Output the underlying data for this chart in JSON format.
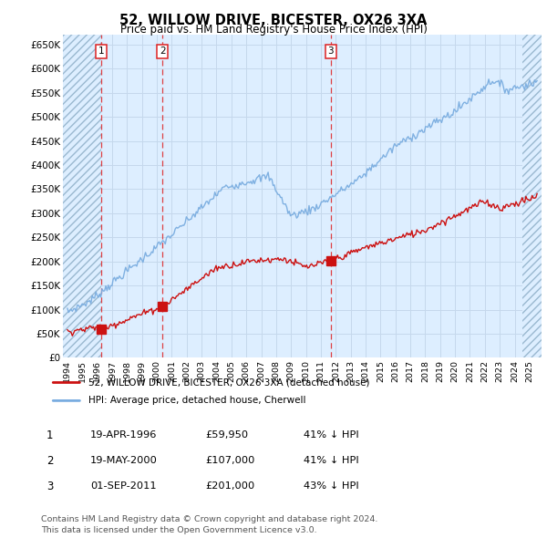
{
  "title": "52, WILLOW DRIVE, BICESTER, OX26 3XA",
  "subtitle": "Price paid vs. HM Land Registry's House Price Index (HPI)",
  "ylabel_ticks": [
    "£0",
    "£50K",
    "£100K",
    "£150K",
    "£200K",
    "£250K",
    "£300K",
    "£350K",
    "£400K",
    "£450K",
    "£500K",
    "£550K",
    "£600K",
    "£650K"
  ],
  "ylim": [
    0,
    670000
  ],
  "xlim_start": 1993.7,
  "xlim_end": 2025.8,
  "hpi_color": "#7aade0",
  "price_color": "#cc1111",
  "marker_color": "#cc1111",
  "dashed_color": "#dd2222",
  "grid_color": "#c5d8ec",
  "plot_bg": "#ddeeff",
  "transactions": [
    {
      "date_label": "1",
      "year": 1996.29,
      "price": 59950,
      "date_str": "19-APR-1996",
      "price_str": "£59,950",
      "hpi_str": "41% ↓ HPI"
    },
    {
      "date_label": "2",
      "year": 2000.38,
      "price": 107000,
      "date_str": "19-MAY-2000",
      "price_str": "£107,000",
      "hpi_str": "41% ↓ HPI"
    },
    {
      "date_label": "3",
      "year": 2011.67,
      "price": 201000,
      "date_str": "01-SEP-2011",
      "price_str": "£201,000",
      "hpi_str": "43% ↓ HPI"
    }
  ],
  "legend_label_price": "52, WILLOW DRIVE, BICESTER, OX26 3XA (detached house)",
  "legend_label_hpi": "HPI: Average price, detached house, Cherwell",
  "footnote": "Contains HM Land Registry data © Crown copyright and database right 2024.\nThis data is licensed under the Open Government Licence v3.0.",
  "x_tick_years": [
    1994,
    1995,
    1996,
    1997,
    1998,
    1999,
    2000,
    2001,
    2002,
    2003,
    2004,
    2005,
    2006,
    2007,
    2008,
    2009,
    2010,
    2011,
    2012,
    2013,
    2014,
    2015,
    2016,
    2017,
    2018,
    2019,
    2020,
    2021,
    2022,
    2023,
    2024,
    2025
  ],
  "hatch_right_start": 2024.5,
  "fig_width": 6.0,
  "fig_height": 5.9
}
